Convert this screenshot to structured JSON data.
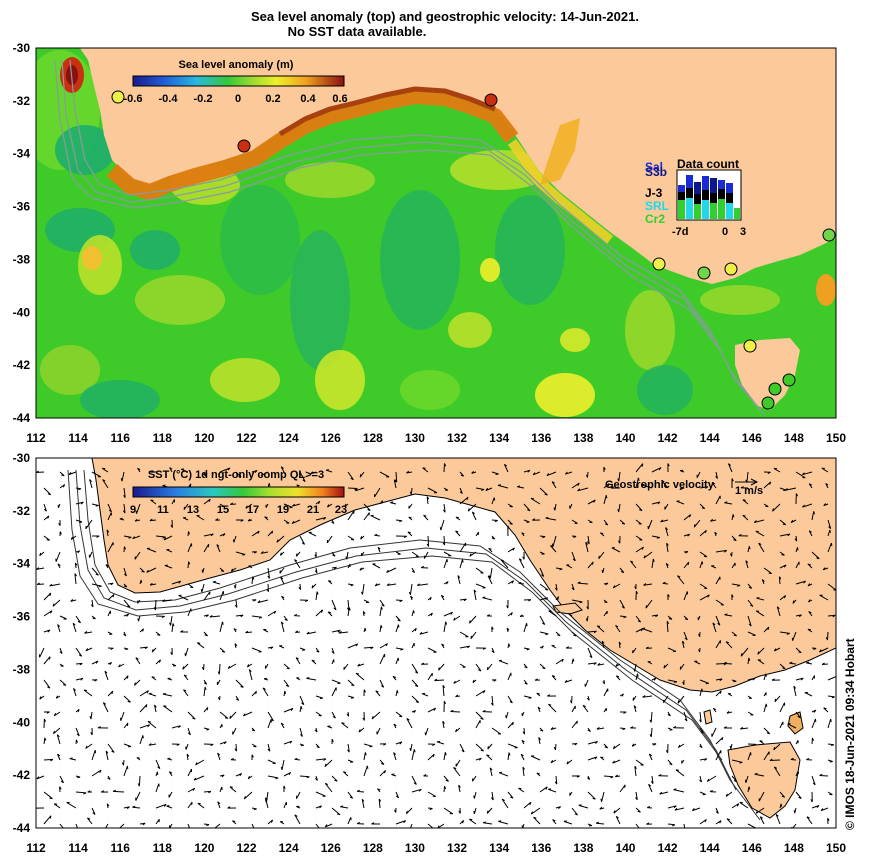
{
  "title_line1": "Sea level anomaly (top) and geostrophic velocity: 14-Jun-2021.",
  "title_line2": "No SST data available.",
  "top_map": {
    "colorbar_title": "Sea level anomaly (m)",
    "colorbar_ticks": [
      "-0.6",
      "-0.4",
      "-0.2",
      "0",
      "0.2",
      "0.4",
      "0.6"
    ],
    "data_count": {
      "title": "Data count",
      "satellites": [
        {
          "label": "Sal",
          "color": "#1a2bd6"
        },
        {
          "label": "S3b",
          "color": "#0b1a8a"
        },
        {
          "label": "J-3",
          "color": "#000000"
        },
        {
          "label": "SRL",
          "color": "#22d8e8"
        },
        {
          "label": "Cr2",
          "color": "#2fd02f"
        }
      ],
      "x_labels": [
        "-7d",
        "0",
        "3"
      ]
    }
  },
  "bottom_map": {
    "colorbar_title": "SST (°C) 1d ngt-only comp QL>=3",
    "colorbar_ticks": [
      "9",
      "11",
      "13",
      "15",
      "17",
      "19",
      "21",
      "23"
    ],
    "velocity_key_title": "Geostrophic velocity",
    "velocity_key_unit": "1 m/s"
  },
  "x_axis_labels": [
    "112",
    "114",
    "116",
    "118",
    "120",
    "122",
    "124",
    "126",
    "128",
    "130",
    "132",
    "134",
    "136",
    "138",
    "140",
    "142",
    "144",
    "146",
    "148",
    "150"
  ],
  "y_axis_labels": [
    "-30",
    "-32",
    "-34",
    "-36",
    "-38",
    "-40",
    "-42",
    "-44"
  ],
  "credit": "© IMOS 18-Jun-2021 09:34 Hobart",
  "colors": {
    "land": "#fbc99a",
    "ocean_green": "#3ecb2a",
    "coast_high": "#e07a10",
    "coast_low": "#a84010",
    "tide_gauge": "#e8f040"
  }
}
